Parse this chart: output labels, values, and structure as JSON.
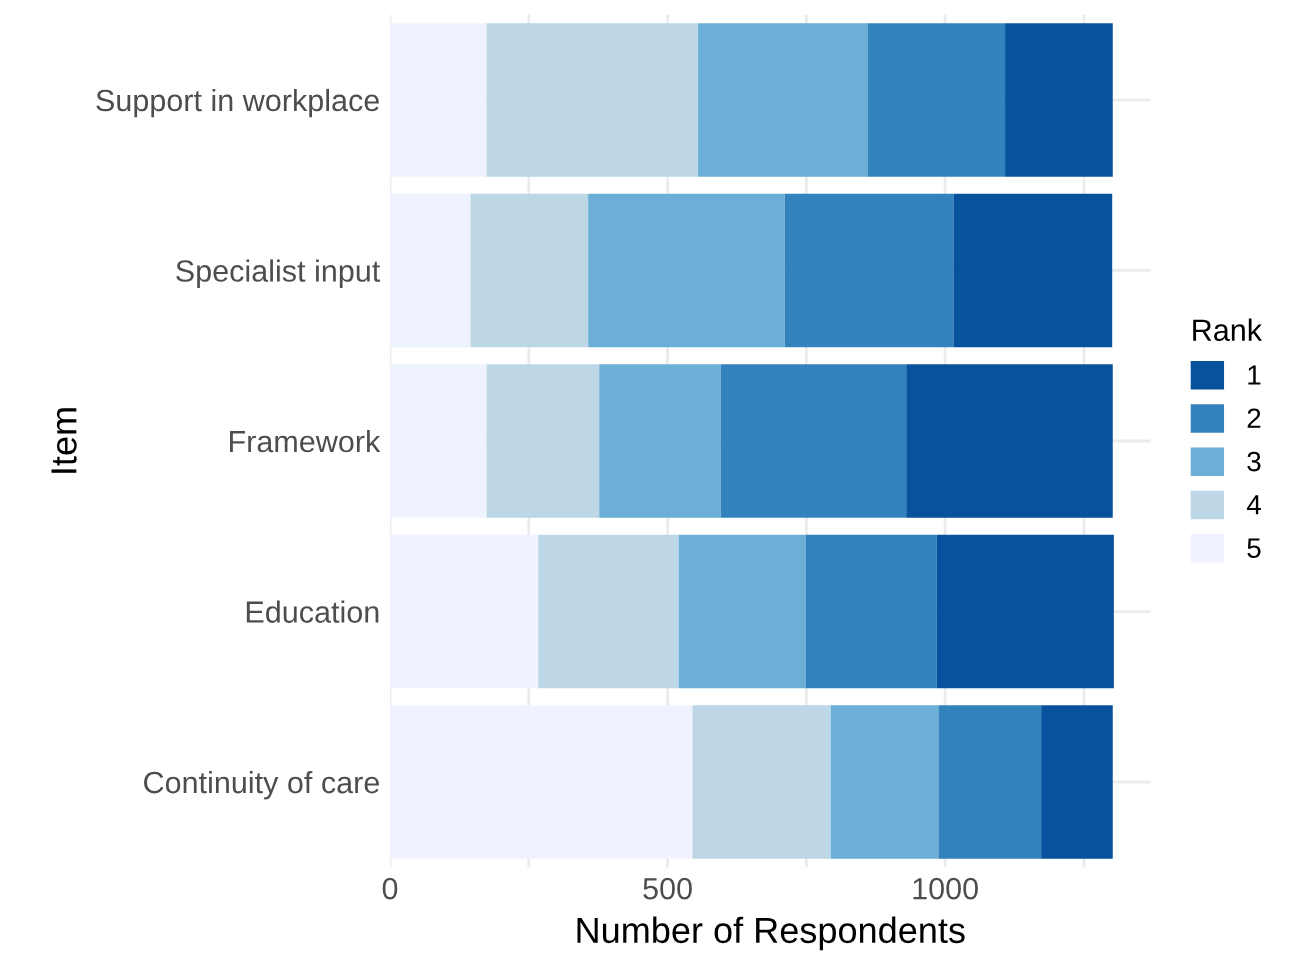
{
  "chart_data": {
    "type": "bar",
    "orientation": "horizontal",
    "stacked": true,
    "categories": [
      "Support in workplace",
      "Specialist input",
      "Framework",
      "Education",
      "Continuity of care"
    ],
    "series": [
      {
        "name": "5",
        "color": "#eff3ff",
        "values": [
          174,
          145,
          174,
          267,
          545
        ]
      },
      {
        "name": "4",
        "color": "#bdd7e7",
        "values": [
          381,
          212,
          203,
          253,
          249
        ]
      },
      {
        "name": "3",
        "color": "#6baed6",
        "values": [
          306,
          354,
          219,
          229,
          194
        ]
      },
      {
        "name": "2",
        "color": "#3182bd",
        "values": [
          247,
          304,
          334,
          236,
          185
        ]
      },
      {
        "name": "1",
        "color": "#08519c",
        "values": [
          194,
          286,
          372,
          319,
          129
        ]
      }
    ],
    "xlabel": "Number of Respondents",
    "ylabel": "Item",
    "legend_title": "Rank",
    "xlim": [
      0,
      1370
    ],
    "xticks": [
      0,
      {
        "value": 250,
        "label": null
      },
      500,
      {
        "value": 750,
        "label": null
      },
      1000,
      {
        "value": 1250,
        "label": null
      }
    ],
    "grid": true,
    "legend": "right"
  }
}
